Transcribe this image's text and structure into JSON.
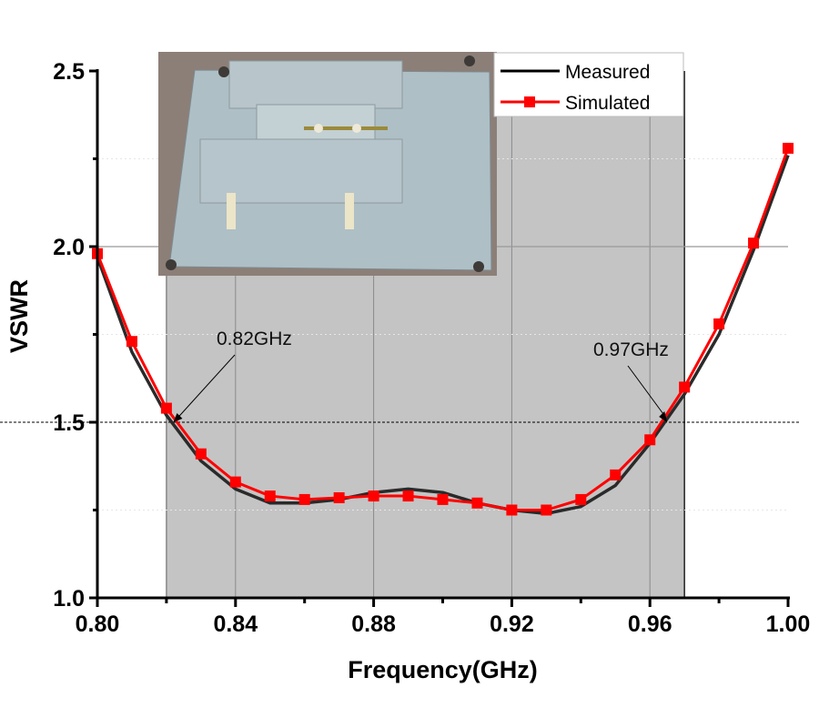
{
  "chart_data": {
    "type": "line",
    "title": "",
    "xlabel": "Frequency(GHz)",
    "ylabel": "VSWR",
    "xlim": [
      0.8,
      1.0
    ],
    "ylim": [
      1.0,
      2.5
    ],
    "x_ticks": [
      0.8,
      0.84,
      0.88,
      0.92,
      0.96,
      1.0
    ],
    "x_tick_labels": [
      "0.80",
      "0.84",
      "0.88",
      "0.92",
      "0.96",
      "1.00"
    ],
    "y_ticks": [
      1.0,
      1.5,
      2.0,
      2.5
    ],
    "y_tick_labels": [
      "1.0",
      "1.5",
      "2.0",
      "2.5"
    ],
    "grid": true,
    "legend_position": "top-right",
    "reference_line": {
      "y": 1.5,
      "style": "dotted"
    },
    "shaded_band": {
      "x_start": 0.82,
      "x_end": 0.97,
      "color": "#c4c4c4"
    },
    "annotations": [
      {
        "text": "0.82GHz",
        "x": 0.822,
        "y": 1.5
      },
      {
        "text": "0.97GHz",
        "x": 0.965,
        "y": 1.5
      }
    ],
    "inset": {
      "description": "photo of fabricated antenna prototype",
      "position": "top-left"
    },
    "series": [
      {
        "name": "Measured",
        "color": "#000000",
        "marker": "none",
        "x": [
          0.8,
          0.81,
          0.82,
          0.83,
          0.84,
          0.85,
          0.86,
          0.87,
          0.88,
          0.89,
          0.9,
          0.91,
          0.92,
          0.93,
          0.94,
          0.95,
          0.96,
          0.97,
          0.98,
          0.99,
          1.0
        ],
        "y": [
          1.97,
          1.7,
          1.52,
          1.39,
          1.31,
          1.27,
          1.27,
          1.28,
          1.3,
          1.31,
          1.3,
          1.27,
          1.25,
          1.24,
          1.26,
          1.32,
          1.44,
          1.58,
          1.75,
          1.99,
          2.26
        ]
      },
      {
        "name": "Simulated",
        "color": "#ff0000",
        "marker": "square",
        "x": [
          0.8,
          0.81,
          0.82,
          0.83,
          0.84,
          0.85,
          0.86,
          0.87,
          0.88,
          0.89,
          0.9,
          0.91,
          0.92,
          0.93,
          0.94,
          0.95,
          0.96,
          0.97,
          0.98,
          0.99,
          1.0
        ],
        "y": [
          1.98,
          1.73,
          1.54,
          1.41,
          1.33,
          1.29,
          1.28,
          1.285,
          1.29,
          1.29,
          1.28,
          1.27,
          1.25,
          1.25,
          1.28,
          1.35,
          1.45,
          1.6,
          1.78,
          2.01,
          2.28
        ]
      }
    ]
  }
}
